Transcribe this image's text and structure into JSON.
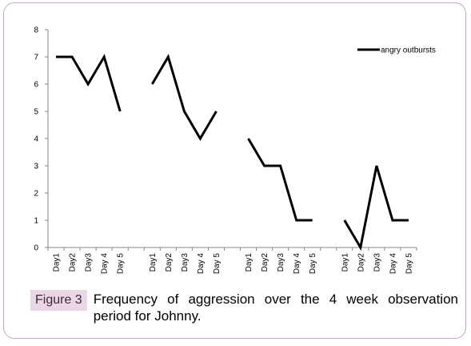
{
  "caption": {
    "figure_label": "Figure 3",
    "text": "Frequency of aggression over the 4 week observation period for Johnny."
  },
  "chart_data": {
    "type": "line",
    "title": "",
    "xlabel": "",
    "ylabel": "",
    "ylim": [
      0,
      8
    ],
    "yticks": [
      0,
      1,
      2,
      3,
      4,
      5,
      6,
      7,
      8
    ],
    "grid": false,
    "legend_position": "top-right",
    "series_color": "#000000",
    "categories": [
      "Day1",
      "Day2",
      "Day3",
      "Day 4",
      "Day 5",
      "",
      "Day1",
      "Day2",
      "Day3",
      "Day 4",
      "Day 5",
      "",
      "Day1",
      "Day2",
      "Day3",
      "Day 4",
      "Day 5",
      "",
      "Day1",
      "Day2",
      "Day3",
      "Day 4",
      "Day 5"
    ],
    "series": [
      {
        "name": "angry outbursts",
        "values": [
          7,
          7,
          6,
          7,
          5,
          null,
          6,
          7,
          5,
          4,
          5,
          null,
          4,
          3,
          3,
          1,
          1,
          null,
          1,
          0,
          3,
          1,
          1
        ]
      }
    ]
  }
}
